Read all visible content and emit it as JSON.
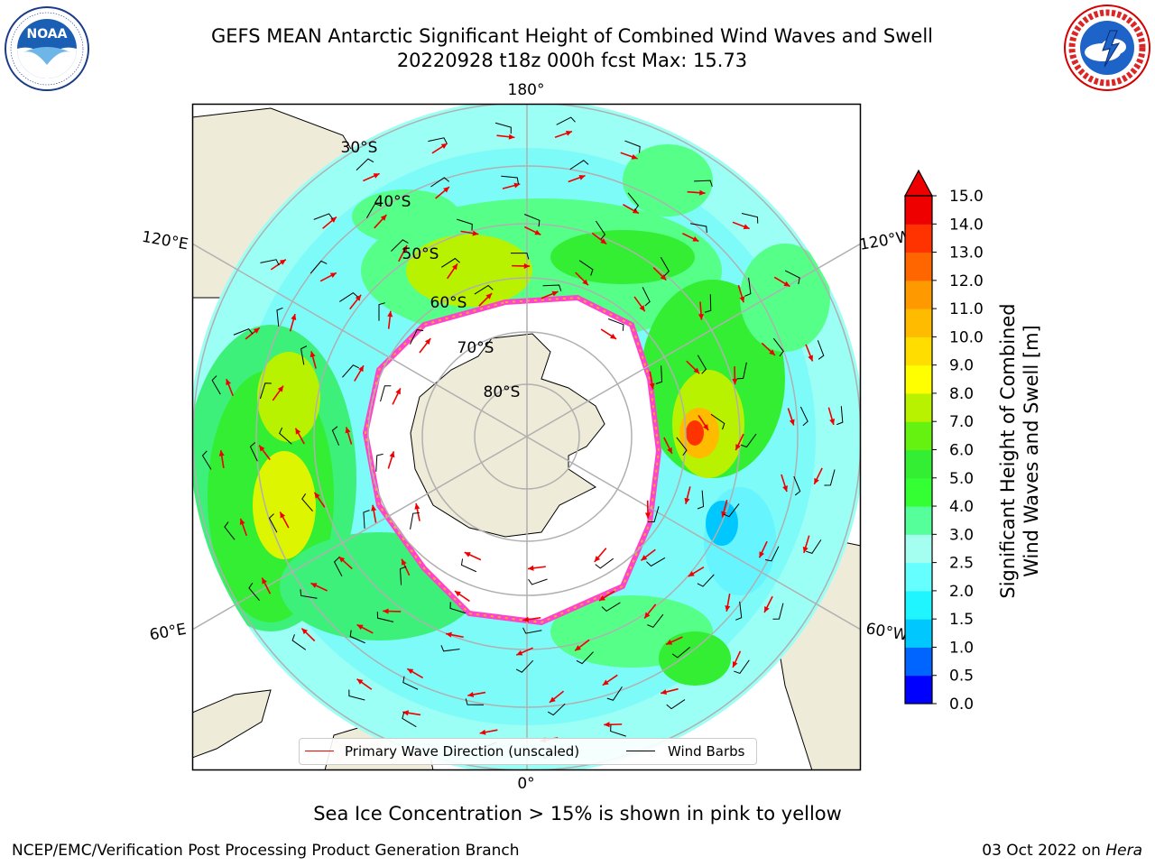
{
  "header": {
    "title_line1": "GEFS MEAN Antarctic Significant Height of Combined Wind Waves and Swell",
    "title_line2": "20220928 t18z 000h fcst   Max: 15.73",
    "max_value": 15.73
  },
  "logos": {
    "left": {
      "text": "NOAA",
      "ring_text": "NATIONAL OCEANIC AND ATMOSPHERIC ADMINISTRATION · U.S. DEPARTMENT OF COMMERCE",
      "icon": "noaa-logo"
    },
    "right": {
      "ring_text": "NATIONAL WEATHER SERVICE",
      "icon": "nws-logo"
    }
  },
  "map": {
    "projection": "south polar stereographic",
    "longitude_labels": {
      "top": "180°",
      "upper_left": "120°E",
      "upper_right": "120°W",
      "lower_left": "60°E",
      "lower_right": "60°W",
      "bottom": "0°"
    },
    "latitude_labels": [
      "30°S",
      "40°S",
      "50°S",
      "60°S",
      "70°S",
      "80°S"
    ],
    "colors": {
      "land": "#efebd9",
      "ice_edge": "#ff44cc",
      "ice_inner": "#ffaa33",
      "arrow": "#ff0000",
      "barb": "#000000",
      "grid": "#b0b0b0"
    }
  },
  "legend": {
    "primary_label": "Primary Wave Direction (unscaled)",
    "primary_color": "#ff0000",
    "barb_label": "Wind Barbs",
    "barb_color": "#000000"
  },
  "colorbar": {
    "label_line1": "Significant Height of Combined",
    "label_line2": "Wind Waves and Swell [m]",
    "ticks": [
      "0.0",
      "0.5",
      "1.0",
      "1.5",
      "2.0",
      "2.5",
      "3.0",
      "4.0",
      "5.0",
      "6.0",
      "7.0",
      "8.0",
      "9.0",
      "10.0",
      "11.0",
      "12.0",
      "13.0",
      "14.0",
      "15.0"
    ],
    "colors": [
      "#0000ff",
      "#0064ff",
      "#00c8ff",
      "#1ef5ff",
      "#66ffff",
      "#a5fff0",
      "#55ff99",
      "#33ff33",
      "#33ee33",
      "#66f210",
      "#b8f200",
      "#ffff00",
      "#ffdd00",
      "#ffbb00",
      "#ff9900",
      "#ff6600",
      "#ff3300",
      "#ee0000"
    ],
    "extend_color": "#ee0000"
  },
  "notes": {
    "sea_ice": "Sea Ice Concentration > 15% is shown in pink to yellow"
  },
  "footer": {
    "left": "NCEP/EMC/Verification Post Processing Product Generation Branch",
    "right_date": "03 Oct 2022 on ",
    "right_host": "Hera"
  }
}
